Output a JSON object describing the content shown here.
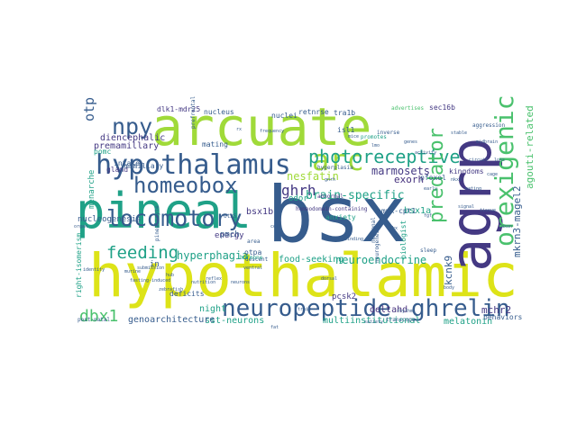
{
  "palette": {
    "yellow": "#dde318",
    "lime": "#a0da39",
    "green": "#4ac16d",
    "teal": "#1fa187",
    "blue": "#365c8d",
    "indigo": "#443983",
    "purple": "#46327e",
    "violet": "#440154",
    "cyan": "#277f8e"
  },
  "words": [
    {
      "text": "hypothalamic",
      "color": "yellow"
    },
    {
      "text": "bsx",
      "color": "blue"
    },
    {
      "text": "arcuate",
      "color": "lime"
    },
    {
      "text": "pineal",
      "color": "teal"
    },
    {
      "text": "agrp",
      "color": "indigo"
    },
    {
      "text": "hypothalamus",
      "color": "blue"
    },
    {
      "text": "locomotory",
      "color": "blue"
    },
    {
      "text": "orexigenic",
      "color": "green"
    },
    {
      "text": "neuropeptide",
      "color": "blue"
    },
    {
      "text": "ghrelin",
      "color": "blue"
    },
    {
      "text": "arc",
      "color": "lime"
    },
    {
      "text": "homeobox",
      "color": "blue"
    },
    {
      "text": "npy",
      "color": "blue"
    },
    {
      "text": "photoreceptive",
      "color": "teal"
    },
    {
      "text": "predator",
      "color": "green"
    },
    {
      "text": "feeding",
      "color": "teal"
    },
    {
      "text": "dbx1",
      "color": "green"
    },
    {
      "text": "otp",
      "color": "blue"
    },
    {
      "text": "ghrh",
      "color": "indigo"
    },
    {
      "text": "brain-specific",
      "color": "teal"
    },
    {
      "text": "neuroendocrine",
      "color": "teal"
    },
    {
      "text": "hyperphagia",
      "color": "teal"
    },
    {
      "text": "nesfatin",
      "color": "lime"
    },
    {
      "text": "marmosets",
      "color": "indigo"
    },
    {
      "text": "exorh",
      "color": "purple"
    },
    {
      "text": "agouti-related",
      "color": "green"
    },
    {
      "text": "mkrn3-magel2",
      "color": "blue"
    },
    {
      "text": "kcnk9",
      "color": "blue"
    },
    {
      "text": "mchr2",
      "color": "indigo"
    },
    {
      "text": "melatonin",
      "color": "teal"
    },
    {
      "text": "multiinstitutional",
      "color": "teal"
    },
    {
      "text": "sst-neurons",
      "color": "teal"
    },
    {
      "text": "genoarchitecture",
      "color": "blue"
    },
    {
      "text": "deltahd",
      "color": "purple"
    },
    {
      "text": "premamillary",
      "color": "indigo"
    },
    {
      "text": "diencephalic",
      "color": "indigo"
    },
    {
      "text": "bsx1b",
      "color": "indigo"
    },
    {
      "text": "bsx1a",
      "color": "teal"
    },
    {
      "text": "pomc",
      "color": "teal"
    },
    {
      "text": "energy",
      "color": "indigo"
    },
    {
      "text": "mating",
      "color": "blue"
    },
    {
      "text": "menarche",
      "color": "teal"
    },
    {
      "text": "nucleogenesis",
      "color": "blue"
    },
    {
      "text": "intake",
      "color": "blue"
    },
    {
      "text": "gland",
      "color": "indigo"
    },
    {
      "text": "mamillary",
      "color": "blue"
    },
    {
      "text": "deficits",
      "color": "blue"
    },
    {
      "text": "night",
      "color": "teal"
    },
    {
      "text": "food-seeking",
      "color": "teal"
    },
    {
      "text": "pcsk2",
      "color": "indigo"
    },
    {
      "text": "odor",
      "color": "teal"
    },
    {
      "text": "anxiety",
      "color": "teal"
    },
    {
      "text": "pmch",
      "color": "blue"
    },
    {
      "text": "otpa",
      "color": "blue"
    },
    {
      "text": "in",
      "color": "blue"
    },
    {
      "text": "dlk1-mdr25",
      "color": "indigo"
    },
    {
      "text": "nucleus",
      "color": "blue"
    },
    {
      "text": "nuclei",
      "color": "blue"
    },
    {
      "text": "retnrse",
      "color": "blue"
    },
    {
      "text": "tra1b",
      "color": "blue"
    },
    {
      "text": "sec16b",
      "color": "indigo"
    },
    {
      "text": "isl1",
      "color": "blue"
    },
    {
      "text": "pfoxol",
      "color": "blue"
    },
    {
      "text": "kingdoms",
      "color": "indigo"
    },
    {
      "text": "ampk-cpt1",
      "color": "blue"
    },
    {
      "text": "right-isomerism",
      "color": "teal"
    },
    {
      "text": "behaviors",
      "color": "blue"
    },
    {
      "text": "biologist",
      "color": "teal"
    },
    {
      "text": "prefrontal",
      "color": "blue"
    },
    {
      "text": "inverse",
      "color": "blue"
    },
    {
      "text": "descent",
      "color": "blue"
    },
    {
      "text": "area",
      "color": "blue"
    },
    {
      "text": "transcope",
      "color": "blue"
    },
    {
      "text": "advertises",
      "color": "green"
    },
    {
      "text": "pinealocyte",
      "color": "blue"
    },
    {
      "text": "otx5",
      "color": "blue"
    },
    {
      "text": "abnormal",
      "color": "indigo"
    },
    {
      "text": "homeodomain-containing",
      "color": "indigo"
    },
    {
      "text": "post-natal",
      "color": "blue"
    },
    {
      "text": "neuronal",
      "color": "blue"
    },
    {
      "text": "aggression",
      "color": "blue"
    },
    {
      "text": "hyperplasia",
      "color": "blue"
    },
    {
      "text": "hormone",
      "color": "teal"
    },
    {
      "text": "promotes",
      "color": "teal"
    },
    {
      "text": "sleep",
      "color": "blue"
    },
    {
      "text": "neurogenesis",
      "color": "blue"
    },
    {
      "text": "stable",
      "color": "blue"
    },
    {
      "text": "midbrain",
      "color": "blue"
    },
    {
      "text": "genes",
      "color": "blue"
    },
    {
      "text": "tissue",
      "color": "blue"
    },
    {
      "text": "signal",
      "color": "blue"
    },
    {
      "text": "body",
      "color": "blue"
    },
    {
      "text": "submission",
      "color": "blue"
    },
    {
      "text": "murine",
      "color": "blue"
    },
    {
      "text": "lmo",
      "color": "blue"
    },
    {
      "text": "activity",
      "color": "blue"
    },
    {
      "text": "zebrafish",
      "color": "blue"
    },
    {
      "text": "rhythm",
      "color": "blue"
    },
    {
      "text": "organ",
      "color": "blue"
    },
    {
      "text": "dorsal",
      "color": "blue"
    },
    {
      "text": "binding",
      "color": "blue"
    },
    {
      "text": "fasting-induced",
      "color": "blue"
    },
    {
      "text": "cell",
      "color": "blue"
    },
    {
      "text": "gnrh",
      "color": "blue"
    },
    {
      "text": "ventral",
      "color": "blue"
    },
    {
      "text": "frequency",
      "color": "blue"
    },
    {
      "text": "mice",
      "color": "blue"
    },
    {
      "text": "reflex",
      "color": "blue"
    },
    {
      "text": "nutrition",
      "color": "blue"
    },
    {
      "text": "identity",
      "color": "blue"
    },
    {
      "text": "hub",
      "color": "blue"
    },
    {
      "text": "neurons",
      "color": "blue"
    },
    {
      "text": "trait",
      "color": "blue"
    },
    {
      "text": "circuit",
      "color": "blue"
    },
    {
      "text": "loss",
      "color": "blue"
    },
    {
      "text": "cage",
      "color": "blue"
    },
    {
      "text": "nkx2",
      "color": "blue"
    },
    {
      "text": "early",
      "color": "blue"
    },
    {
      "text": "eating",
      "color": "blue"
    },
    {
      "text": "fgf",
      "color": "blue"
    },
    {
      "text": "axon",
      "color": "blue"
    },
    {
      "text": "lhx",
      "color": "blue"
    },
    {
      "text": "satiety",
      "color": "blue"
    },
    {
      "text": "fat",
      "color": "blue"
    },
    {
      "text": "rx",
      "color": "blue"
    }
  ]
}
